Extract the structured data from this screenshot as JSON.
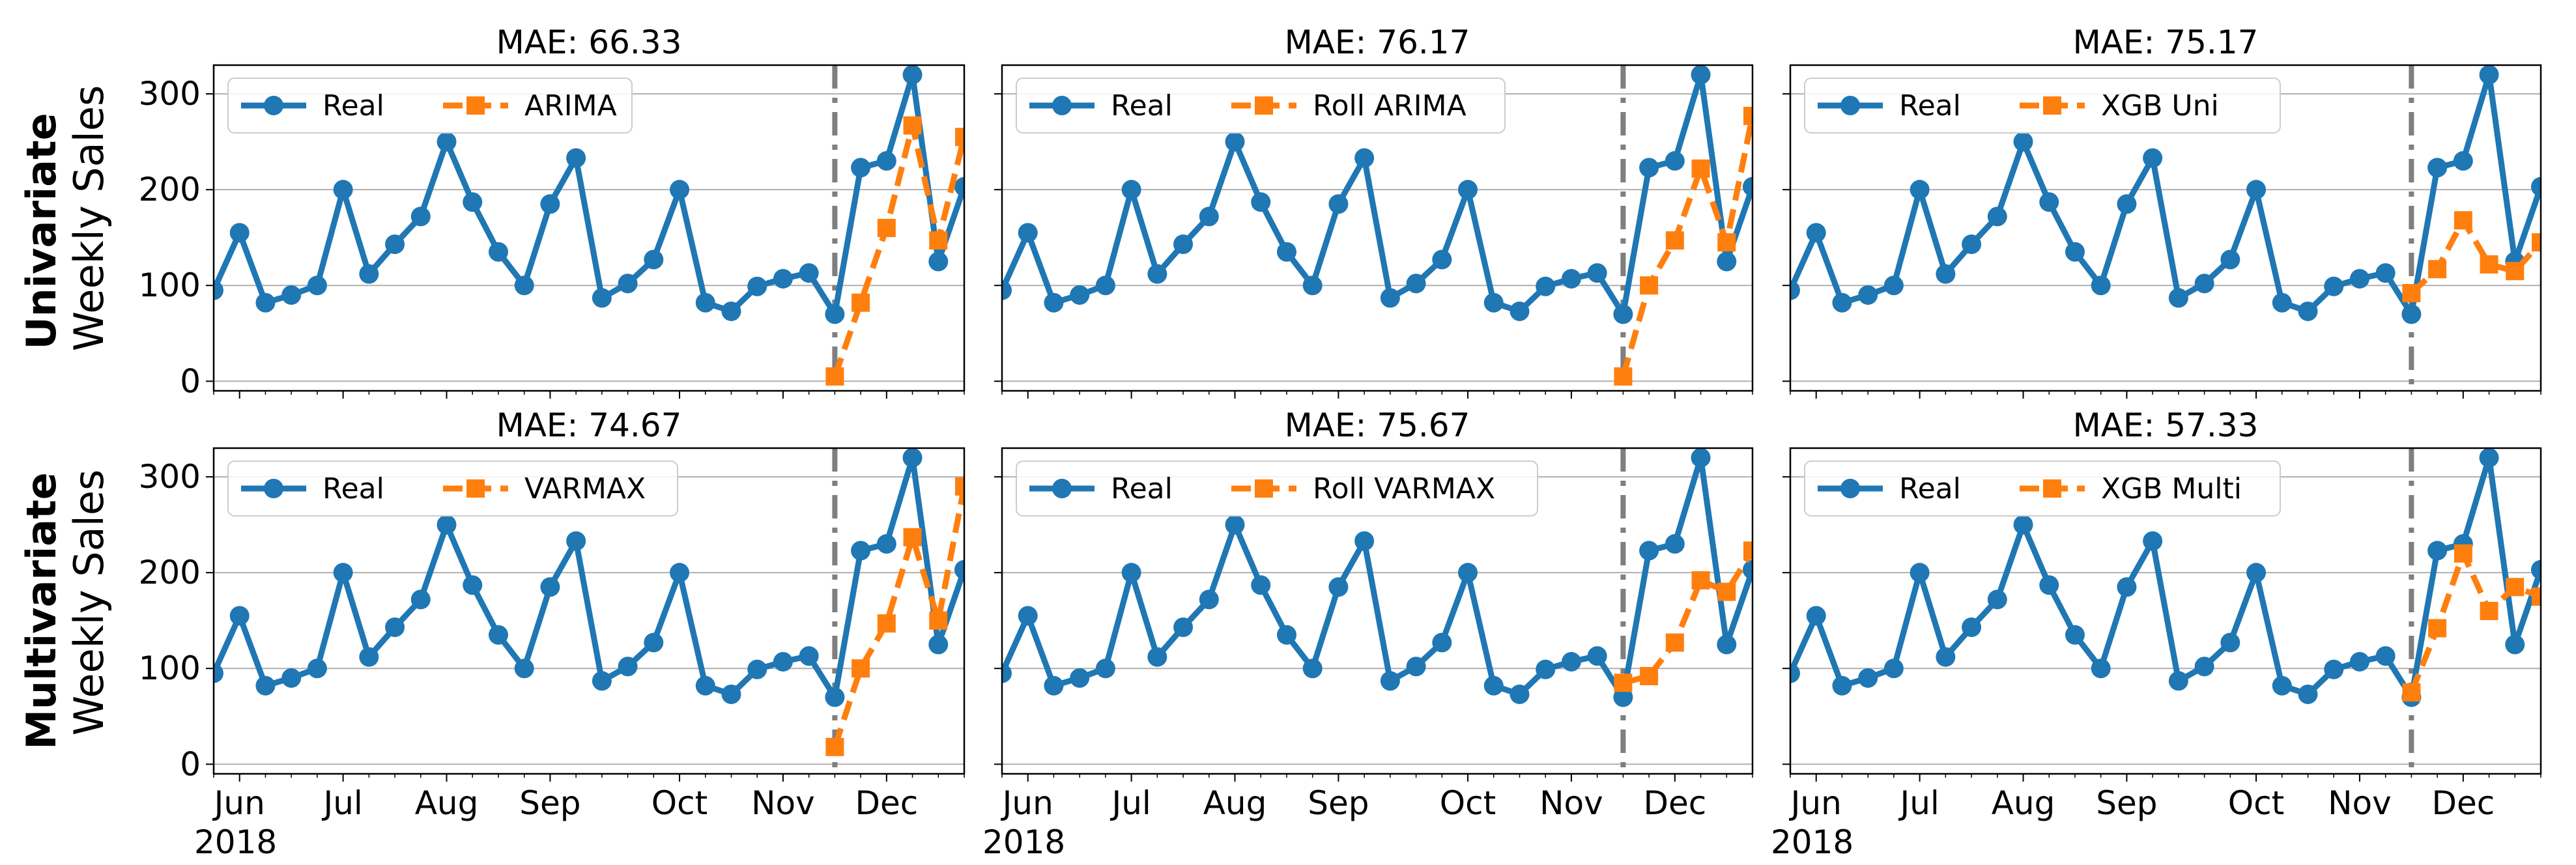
{
  "figure": {
    "row_labels": [
      {
        "bold": "Univariate",
        "normal": "Weekly Sales"
      },
      {
        "bold": "Multivariate",
        "normal": "Weekly Sales"
      }
    ],
    "colors": {
      "real": "#1f77b4",
      "pred": "#ff7f0e",
      "vline": "#7f7f7f",
      "grid": "#b0b0b0"
    }
  },
  "chart_data": [
    {
      "type": "line",
      "title": "MAE: 66.33",
      "ylabel": "Weekly Sales",
      "y_ticks": [
        0,
        100,
        200,
        300
      ],
      "ylim": [
        -10,
        330
      ],
      "x_ticks": [
        {
          "label": "Jun",
          "x": 1
        },
        {
          "label": "Jul",
          "x": 5
        },
        {
          "label": "Aug",
          "x": 9
        },
        {
          "label": "Sep",
          "x": 13
        },
        {
          "label": "Oct",
          "x": 18
        },
        {
          "label": "Nov",
          "x": 22
        },
        {
          "label": "Dec",
          "x": 26
        }
      ],
      "x_sublabel": "2018",
      "xlim": [
        0,
        29
      ],
      "vline_x": 24,
      "series": [
        {
          "name": "Real",
          "values": [
            95,
            155,
            82,
            90,
            100,
            200,
            112,
            143,
            172,
            250,
            187,
            135,
            100,
            185,
            233,
            87,
            102,
            127,
            200,
            82,
            73,
            99,
            107,
            113,
            70,
            223,
            230,
            320,
            125,
            203
          ],
          "x_start": 0
        },
        {
          "name": "ARIMA",
          "values": [
            5,
            82,
            160,
            267,
            147,
            255
          ],
          "x_start": 24
        }
      ]
    },
    {
      "type": "line",
      "title": "MAE: 76.17",
      "ylabel": "Weekly Sales",
      "y_ticks": [
        0,
        100,
        200,
        300
      ],
      "ylim": [
        -10,
        330
      ],
      "x_ticks": [
        {
          "label": "Jun",
          "x": 1
        },
        {
          "label": "Jul",
          "x": 5
        },
        {
          "label": "Aug",
          "x": 9
        },
        {
          "label": "Sep",
          "x": 13
        },
        {
          "label": "Oct",
          "x": 18
        },
        {
          "label": "Nov",
          "x": 22
        },
        {
          "label": "Dec",
          "x": 26
        }
      ],
      "x_sublabel": "2018",
      "xlim": [
        0,
        29
      ],
      "vline_x": 24,
      "series": [
        {
          "name": "Real",
          "values": [
            95,
            155,
            82,
            90,
            100,
            200,
            112,
            143,
            172,
            250,
            187,
            135,
            100,
            185,
            233,
            87,
            102,
            127,
            200,
            82,
            73,
            99,
            107,
            113,
            70,
            223,
            230,
            320,
            125,
            203
          ],
          "x_start": 0
        },
        {
          "name": "Roll ARIMA",
          "values": [
            5,
            100,
            147,
            222,
            145,
            277
          ],
          "x_start": 24
        }
      ]
    },
    {
      "type": "line",
      "title": "MAE: 75.17",
      "ylabel": "Weekly Sales",
      "y_ticks": [
        0,
        100,
        200,
        300
      ],
      "ylim": [
        -10,
        330
      ],
      "x_ticks": [
        {
          "label": "Jun",
          "x": 1
        },
        {
          "label": "Jul",
          "x": 5
        },
        {
          "label": "Aug",
          "x": 9
        },
        {
          "label": "Sep",
          "x": 13
        },
        {
          "label": "Oct",
          "x": 18
        },
        {
          "label": "Nov",
          "x": 22
        },
        {
          "label": "Dec",
          "x": 26
        }
      ],
      "x_sublabel": "2018",
      "xlim": [
        0,
        29
      ],
      "vline_x": 24,
      "series": [
        {
          "name": "Real",
          "values": [
            95,
            155,
            82,
            90,
            100,
            200,
            112,
            143,
            172,
            250,
            187,
            135,
            100,
            185,
            233,
            87,
            102,
            127,
            200,
            82,
            73,
            99,
            107,
            113,
            70,
            223,
            230,
            320,
            125,
            203
          ],
          "x_start": 0
        },
        {
          "name": "XGB Uni",
          "values": [
            92,
            117,
            168,
            122,
            115,
            145
          ],
          "x_start": 24
        }
      ]
    },
    {
      "type": "line",
      "title": "MAE: 74.67",
      "ylabel": "Weekly Sales",
      "y_ticks": [
        0,
        100,
        200,
        300
      ],
      "ylim": [
        -10,
        330
      ],
      "x_ticks": [
        {
          "label": "Jun",
          "x": 1
        },
        {
          "label": "Jul",
          "x": 5
        },
        {
          "label": "Aug",
          "x": 9
        },
        {
          "label": "Sep",
          "x": 13
        },
        {
          "label": "Oct",
          "x": 18
        },
        {
          "label": "Nov",
          "x": 22
        },
        {
          "label": "Dec",
          "x": 26
        }
      ],
      "x_sublabel": "2018",
      "xlim": [
        0,
        29
      ],
      "vline_x": 24,
      "series": [
        {
          "name": "Real",
          "values": [
            95,
            155,
            82,
            90,
            100,
            200,
            112,
            143,
            172,
            250,
            187,
            135,
            100,
            185,
            233,
            87,
            102,
            127,
            200,
            82,
            73,
            99,
            107,
            113,
            70,
            223,
            230,
            320,
            125,
            203
          ],
          "x_start": 0
        },
        {
          "name": "VARMAX",
          "values": [
            18,
            100,
            147,
            237,
            150,
            290
          ],
          "x_start": 24
        }
      ]
    },
    {
      "type": "line",
      "title": "MAE: 75.67",
      "ylabel": "Weekly Sales",
      "y_ticks": [
        0,
        100,
        200,
        300
      ],
      "ylim": [
        -10,
        330
      ],
      "x_ticks": [
        {
          "label": "Jun",
          "x": 1
        },
        {
          "label": "Jul",
          "x": 5
        },
        {
          "label": "Aug",
          "x": 9
        },
        {
          "label": "Sep",
          "x": 13
        },
        {
          "label": "Oct",
          "x": 18
        },
        {
          "label": "Nov",
          "x": 22
        },
        {
          "label": "Dec",
          "x": 26
        }
      ],
      "x_sublabel": "2018",
      "xlim": [
        0,
        29
      ],
      "vline_x": 24,
      "series": [
        {
          "name": "Real",
          "values": [
            95,
            155,
            82,
            90,
            100,
            200,
            112,
            143,
            172,
            250,
            187,
            135,
            100,
            185,
            233,
            87,
            102,
            127,
            200,
            82,
            73,
            99,
            107,
            113,
            70,
            223,
            230,
            320,
            125,
            203
          ],
          "x_start": 0
        },
        {
          "name": "Roll VARMAX",
          "values": [
            85,
            92,
            127,
            192,
            180,
            223
          ],
          "x_start": 24
        }
      ]
    },
    {
      "type": "line",
      "title": "MAE: 57.33",
      "ylabel": "Weekly Sales",
      "y_ticks": [
        0,
        100,
        200,
        300
      ],
      "ylim": [
        -10,
        330
      ],
      "x_ticks": [
        {
          "label": "Jun",
          "x": 1
        },
        {
          "label": "Jul",
          "x": 5
        },
        {
          "label": "Aug",
          "x": 9
        },
        {
          "label": "Sep",
          "x": 13
        },
        {
          "label": "Oct",
          "x": 18
        },
        {
          "label": "Nov",
          "x": 22
        },
        {
          "label": "Dec",
          "x": 26
        }
      ],
      "x_sublabel": "2018",
      "xlim": [
        0,
        29
      ],
      "vline_x": 24,
      "series": [
        {
          "name": "Real",
          "values": [
            95,
            155,
            82,
            90,
            100,
            200,
            112,
            143,
            172,
            250,
            187,
            135,
            100,
            185,
            233,
            87,
            102,
            127,
            200,
            82,
            73,
            99,
            107,
            113,
            70,
            223,
            230,
            320,
            125,
            203
          ],
          "x_start": 0
        },
        {
          "name": "XGB Multi",
          "values": [
            75,
            142,
            220,
            160,
            185,
            175
          ],
          "x_start": 24
        }
      ]
    }
  ]
}
